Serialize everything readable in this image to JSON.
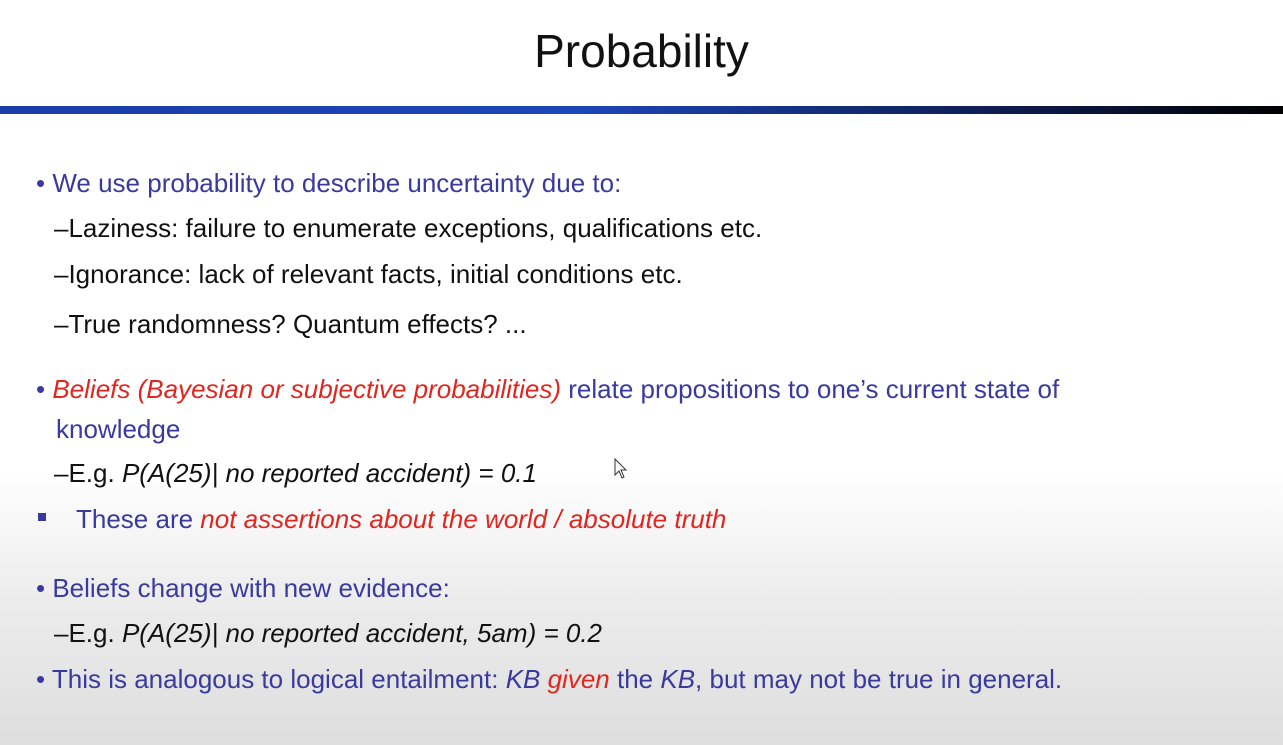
{
  "slide": {
    "title": "Probability",
    "b1": {
      "bullet": "•",
      "text": "We use probability to describe uncertainty due to:"
    },
    "s1": "–Laziness: failure to enumerate exceptions, qualifications etc.",
    "s2": "–Ignorance: lack of relevant facts, initial conditions etc.",
    "s3": "–True randomness? Quantum effects? ...",
    "b2": {
      "bullet": "•",
      "red": "Beliefs (Bayesian or subjective probabilities)",
      "rest": " relate propositions to one’s  current state of",
      "cont": "knowledge"
    },
    "s4": {
      "prefix": "–E.g. ",
      "formula": "P(A(25)|  no reported accident) = 0.1"
    },
    "b3": {
      "text": "These are ",
      "red": "not assertions about the world / absolute truth"
    },
    "b4": {
      "bullet": "•",
      "text": "Beliefs change with new evidence:"
    },
    "s5": {
      "prefix": "–E.g. ",
      "formula": "P(A(25)|  no reported accident, 5am) = 0.2"
    },
    "b5": {
      "bullet": "•",
      "t1": "This is analogous to logical entailment:  ",
      "kb1": "KB",
      "given": " given",
      "t2": " the ",
      "kb2": "KB",
      "t3": ", but may not be true in general."
    }
  }
}
